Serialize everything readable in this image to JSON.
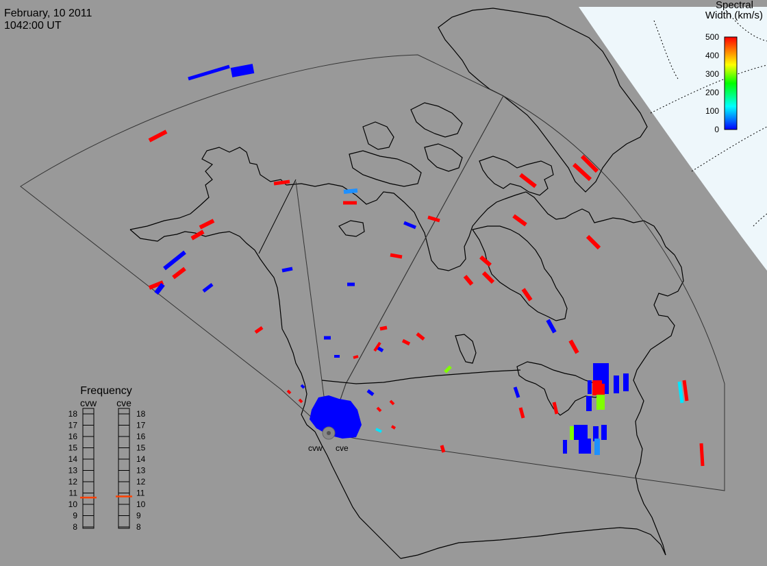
{
  "header": {
    "date": "February, 10 2011",
    "time": "1042:00 UT"
  },
  "colorbar": {
    "title_line1": "Spectral",
    "title_line2": "Width (km/s)",
    "min": 0,
    "max": 500,
    "tick_labels": [
      "500",
      "400",
      "300",
      "200",
      "100",
      "0"
    ],
    "gradient_stops": [
      "#0000ff",
      "#0080ff",
      "#00ffff",
      "#00ff80",
      "#00ff00",
      "#80ff00",
      "#ffff00",
      "#ff8000",
      "#ff0000"
    ]
  },
  "frequency_panel": {
    "title": "Frequency",
    "radars": [
      {
        "name": "cvw",
        "selected_mhz": 10.6
      },
      {
        "name": "cve",
        "selected_mhz": 10.7
      }
    ],
    "scale_labels": [
      "18",
      "17",
      "16",
      "15",
      "14",
      "13",
      "12",
      "11",
      "10",
      "9",
      "8"
    ],
    "indicator_color": "#ff4000"
  },
  "radar_sites": [
    {
      "label": "cvw"
    },
    {
      "label": "cve"
    }
  ],
  "colors": {
    "map_land": "#999999",
    "polar_cap": "#eef7fb",
    "coast": "#000000",
    "low_width": "#0000ff",
    "high_width": "#ff0000"
  }
}
